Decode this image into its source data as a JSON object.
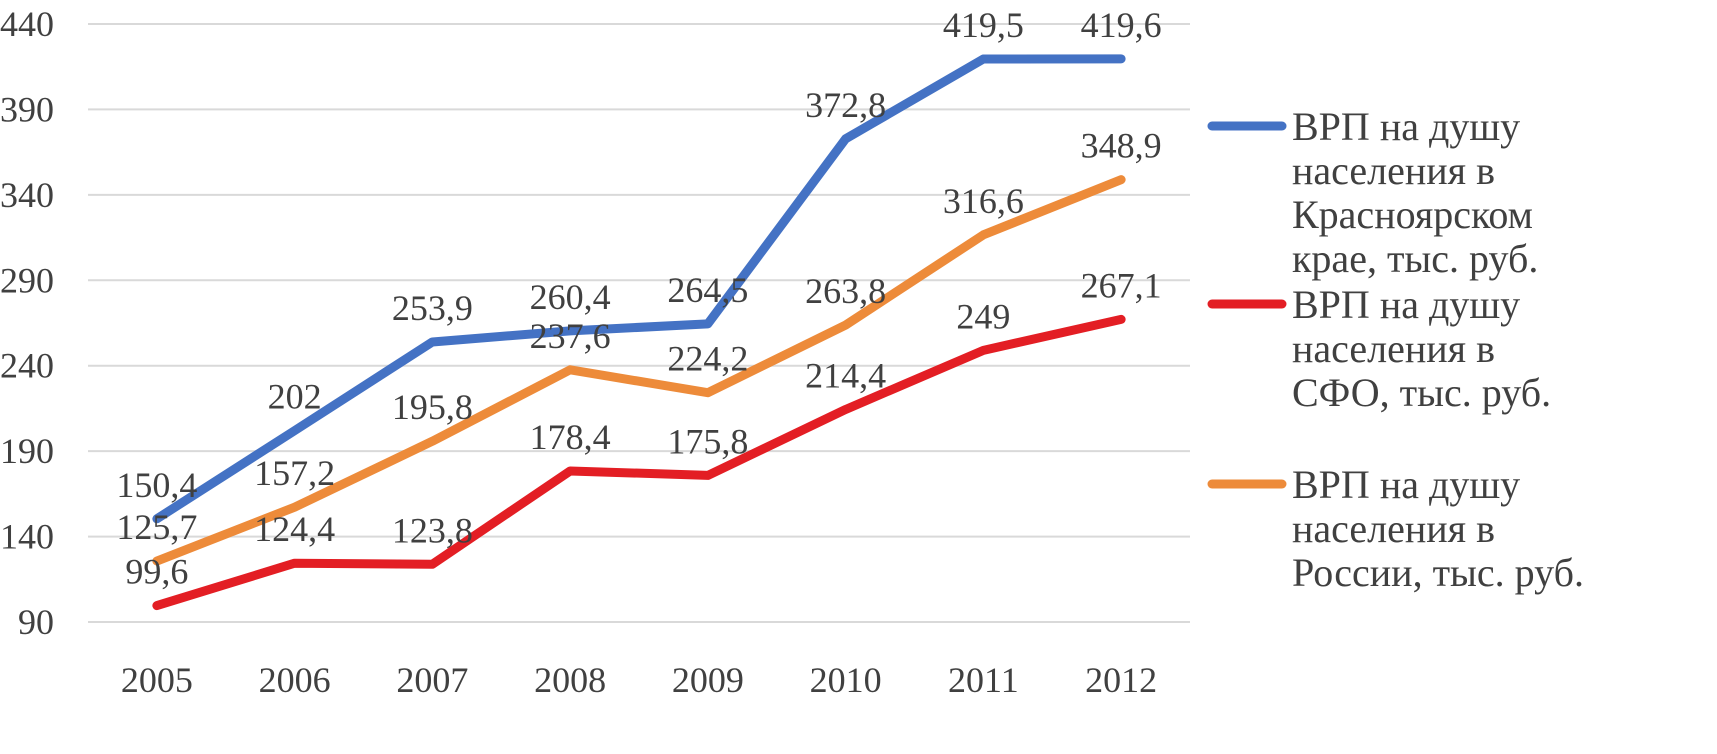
{
  "chart_data": {
    "type": "line",
    "categories": [
      "2005",
      "2006",
      "2007",
      "2008",
      "2009",
      "2010",
      "2011",
      "2012"
    ],
    "ylim": [
      90,
      440
    ],
    "yticks": [
      90,
      140,
      190,
      240,
      290,
      340,
      390,
      440
    ],
    "ytick_labels": [
      "90",
      "140",
      "190",
      "240",
      "290",
      "340",
      "390",
      "440"
    ],
    "grid": true,
    "legend_position": "right",
    "series": [
      {
        "name": "ВРП на душу населения в Красноярском крае, тыс. руб.",
        "legend_lines": [
          "ВРП на душу",
          "населения в",
          "Красноярском",
          "крае, тыс. руб."
        ],
        "color": "#4472c4",
        "values": [
          150.4,
          202,
          253.9,
          260.4,
          264.5,
          372.8,
          419.5,
          419.6
        ],
        "labels": [
          "150,4",
          "202",
          "253,9",
          "260,4",
          "264,5",
          "372,8",
          "419,5",
          "419,6"
        ]
      },
      {
        "name": "ВРП на душу населения в СФО, тыс. руб.",
        "legend_lines": [
          "ВРП на душу",
          "населения в",
          "СФО, тыс. руб."
        ],
        "color": "#e31e24",
        "values": [
          99.6,
          124.4,
          123.8,
          178.4,
          175.8,
          214.4,
          249,
          267.1
        ],
        "labels": [
          "99,6",
          "124,4",
          "123,8",
          "178,4",
          "175,8",
          "214,4",
          "249",
          "267,1"
        ]
      },
      {
        "name": "ВРП на душу населения в России, тыс. руб.",
        "legend_lines": [
          "ВРП на душу",
          "населения в",
          "России, тыс. руб."
        ],
        "color": "#ed8b3a",
        "values": [
          125.7,
          157.2,
          195.8,
          237.6,
          224.2,
          263.8,
          316.6,
          348.9
        ],
        "labels": [
          "125,7",
          "157,2",
          "195,8",
          "237,6",
          "224,2",
          "263,8",
          "316,6",
          "348,9"
        ]
      }
    ]
  }
}
